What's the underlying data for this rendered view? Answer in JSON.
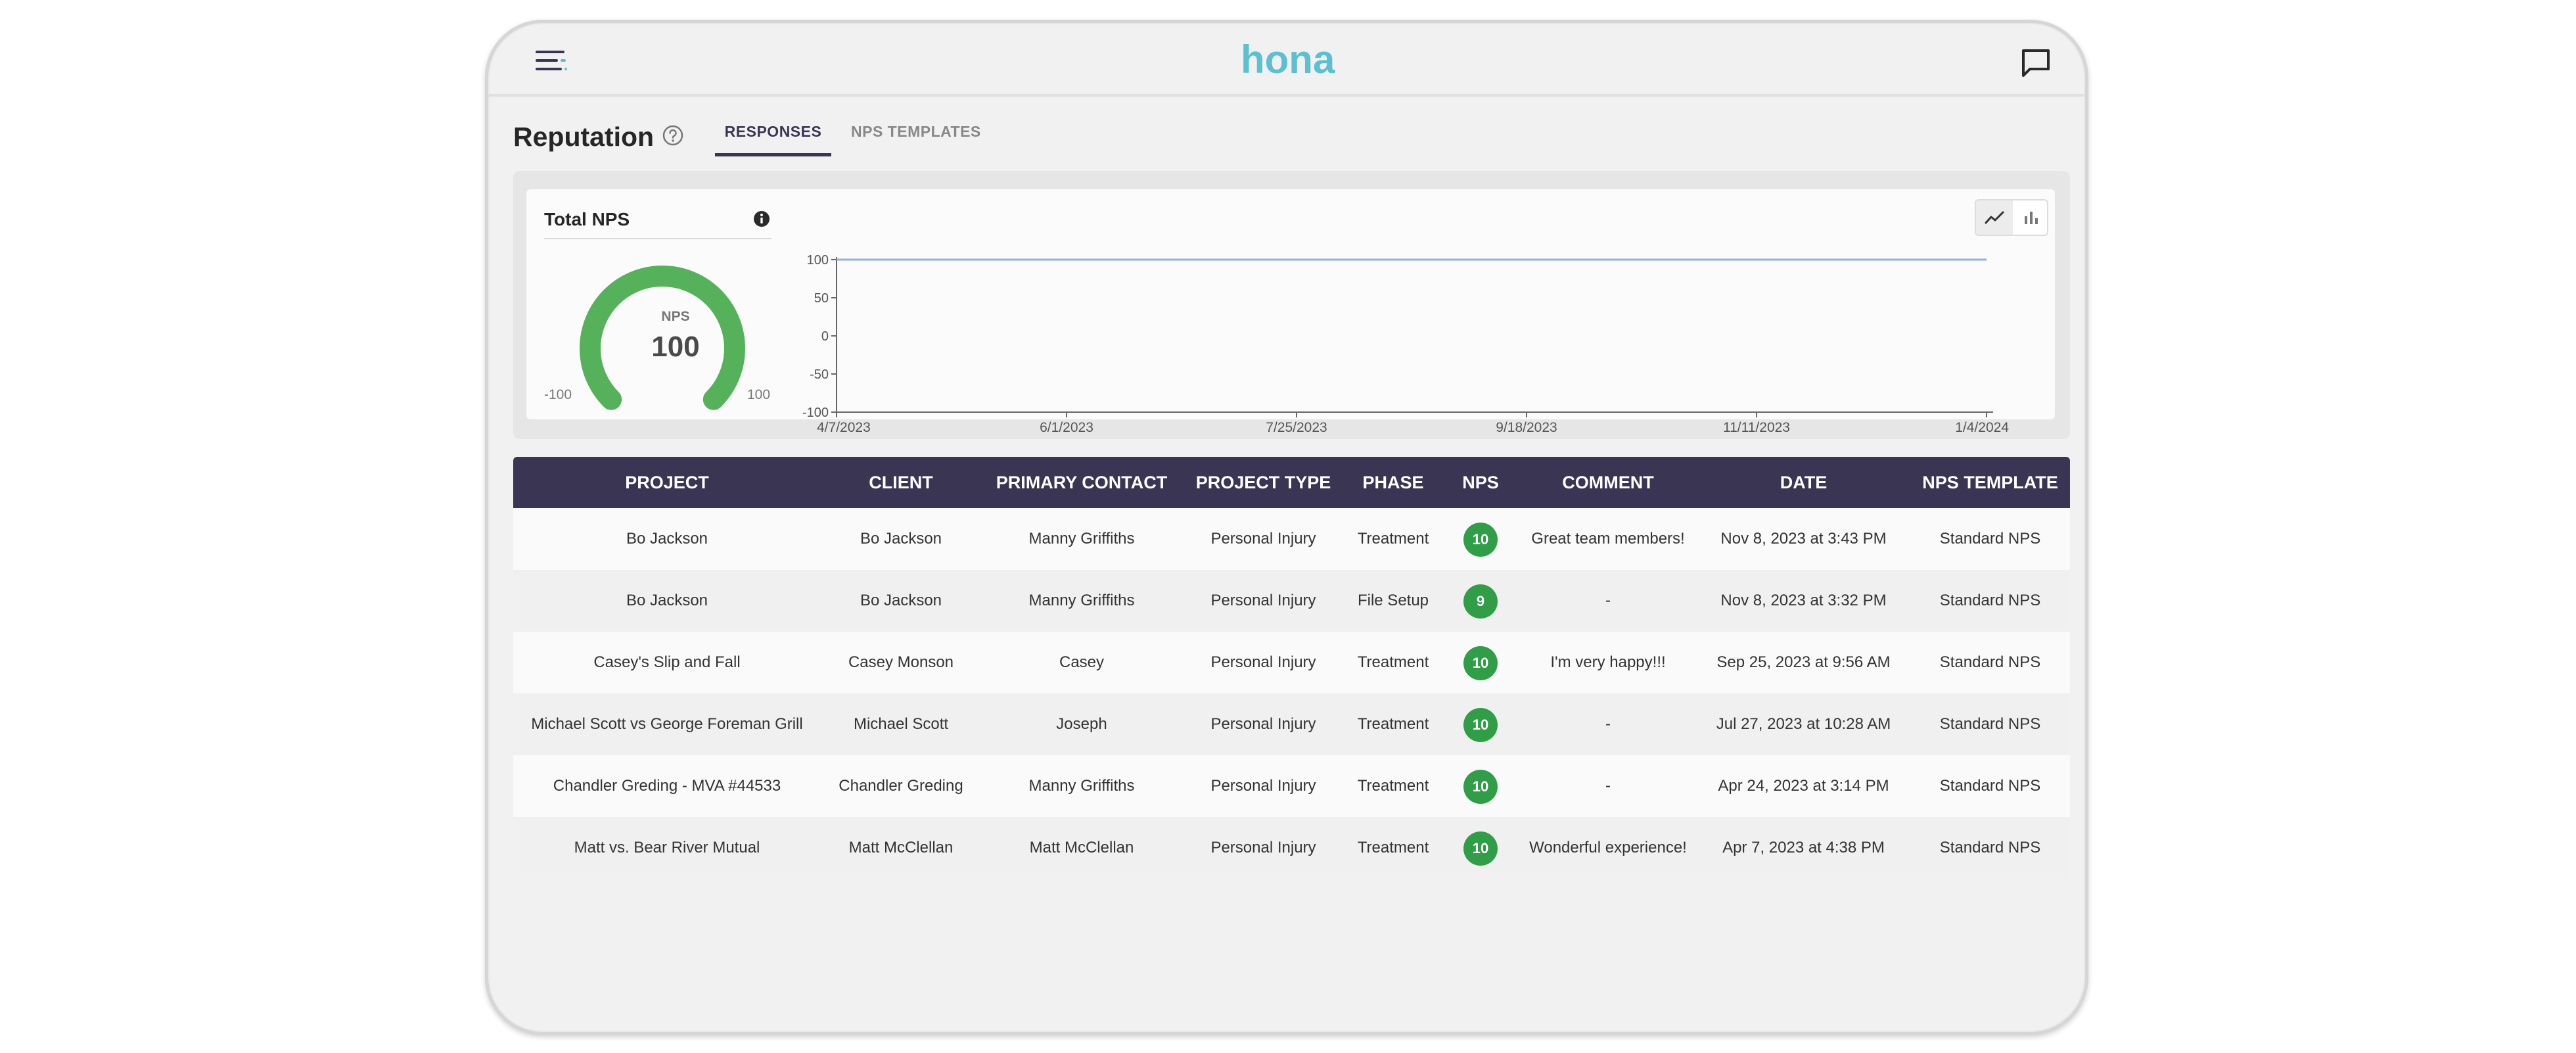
{
  "app": {
    "logo_text": "hona",
    "brand_color": "#5bc0d2",
    "accent_color": "#3a3552"
  },
  "header": {
    "menu_icon": "hamburger-menu-icon",
    "chat_icon": "chat-icon"
  },
  "page": {
    "title": "Reputation",
    "help_icon": "help-circle-icon"
  },
  "tabs": [
    {
      "label": "RESPONSES",
      "active": true
    },
    {
      "label": "NPS TEMPLATES",
      "active": false
    }
  ],
  "nps_card": {
    "title": "Total NPS",
    "gauge_caption": "NPS",
    "gauge_value": "100",
    "gauge_min": "-100",
    "gauge_max": "100",
    "gauge_color": "#56b25a"
  },
  "chart_data": {
    "type": "line",
    "x": [
      "4/7/2023",
      "6/1/2023",
      "7/25/2023",
      "9/18/2023",
      "11/11/2023",
      "1/4/2024"
    ],
    "series": [
      {
        "values": [
          100,
          100,
          100,
          100,
          100,
          100
        ]
      }
    ],
    "y_ticks": [
      "100",
      "50",
      "0",
      "-50",
      "-100"
    ],
    "ylim": [
      -100,
      100
    ],
    "line_color": "#8fb0d8",
    "grid": false
  },
  "chart_toggle": {
    "line_icon": "line-chart-icon",
    "bar_icon": "bar-chart-icon"
  },
  "table": {
    "columns": [
      "PROJECT",
      "CLIENT",
      "PRIMARY CONTACT",
      "PROJECT TYPE",
      "PHASE",
      "NPS",
      "COMMENT",
      "DATE",
      "NPS TEMPLATE"
    ],
    "rows": [
      {
        "project": "Bo Jackson",
        "client": "Bo Jackson",
        "contact": "Manny Griffiths",
        "type": "Personal Injury",
        "phase": "Treatment",
        "nps": "10",
        "comment": "Great team members!",
        "date": "Nov 8, 2023 at 3:43 PM",
        "template": "Standard NPS"
      },
      {
        "project": "Bo Jackson",
        "client": "Bo Jackson",
        "contact": "Manny Griffiths",
        "type": "Personal Injury",
        "phase": "File Setup",
        "nps": "9",
        "comment": "-",
        "date": "Nov 8, 2023 at 3:32 PM",
        "template": "Standard NPS"
      },
      {
        "project": "Casey's Slip and Fall",
        "client": "Casey Monson",
        "contact": "Casey",
        "type": "Personal Injury",
        "phase": "Treatment",
        "nps": "10",
        "comment": "I'm very happy!!!",
        "date": "Sep 25, 2023 at 9:56 AM",
        "template": "Standard NPS"
      },
      {
        "project": "Michael Scott vs George Foreman Grill",
        "client": "Michael Scott",
        "contact": "Joseph",
        "type": "Personal Injury",
        "phase": "Treatment",
        "nps": "10",
        "comment": "-",
        "date": "Jul 27, 2023 at 10:28 AM",
        "template": "Standard NPS"
      },
      {
        "project": "Chandler Greding - MVA #44533",
        "client": "Chandler Greding",
        "contact": "Manny Griffiths",
        "type": "Personal Injury",
        "phase": "Treatment",
        "nps": "10",
        "comment": "-",
        "date": "Apr 24, 2023 at 3:14 PM",
        "template": "Standard NPS"
      },
      {
        "project": "Matt vs. Bear River Mutual",
        "client": "Matt McClellan",
        "contact": "Matt McClellan",
        "type": "Personal Injury",
        "phase": "Treatment",
        "nps": "10",
        "comment": "Wonderful experience!",
        "date": "Apr 7, 2023 at 4:38 PM",
        "template": "Standard NPS"
      }
    ]
  }
}
